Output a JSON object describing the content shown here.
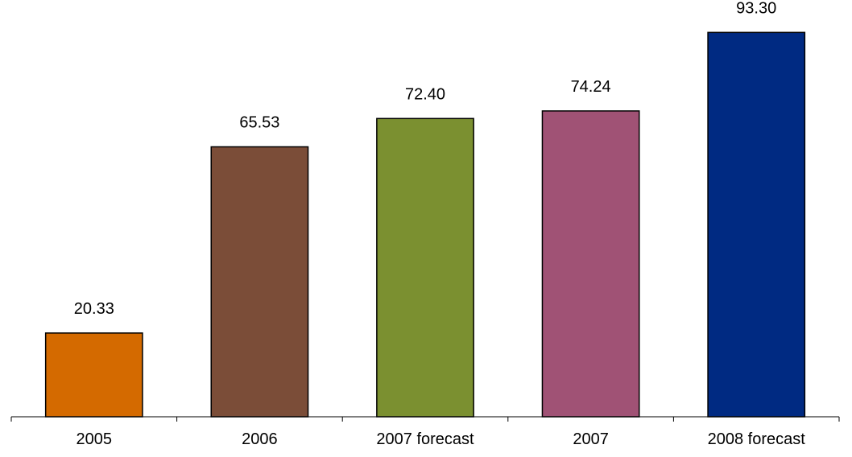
{
  "chart_data": {
    "type": "bar",
    "title": "",
    "xlabel": "",
    "ylabel": "",
    "ylim": [
      0,
      100
    ],
    "grid": false,
    "legend": "none",
    "categories": [
      "2005",
      "2006",
      "2007 forecast",
      "2007",
      "2008 forecast"
    ],
    "values": [
      20.33,
      65.53,
      72.4,
      74.24,
      93.3
    ],
    "value_labels": [
      "20.33",
      "65.53",
      "72.40",
      "74.24",
      "93.30"
    ],
    "colors": [
      "#D46A00",
      "#7B4D38",
      "#7B9030",
      "#A05275",
      "#002A82"
    ]
  }
}
